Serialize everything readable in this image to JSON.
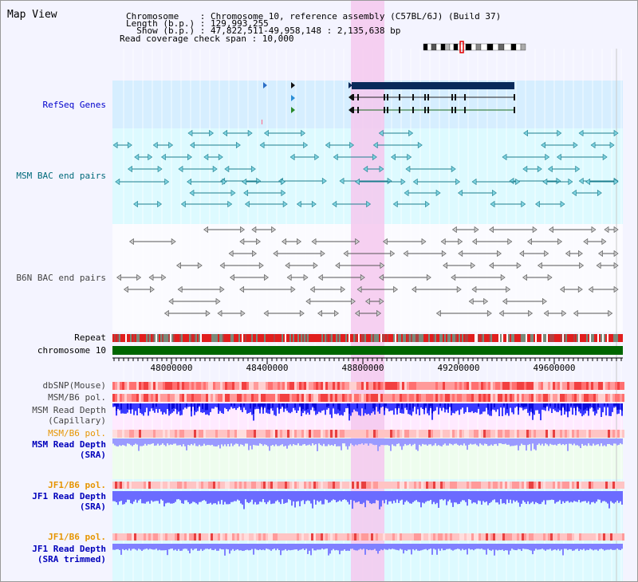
{
  "header": {
    "title": "Map View",
    "chromosome_line": "Chromosome    : Chromosome 10, reference assembly (C57BL/6J) (Build 37)",
    "length_line": "Length (b.p.) : 129,993,255",
    "show_line": "  Show (b.p.) : 47,822,511-49,958,148 : 2,135,638 bp",
    "coverage_line": "Read coverage check span : 10,000"
  },
  "tracks": {
    "refseq": "RefSeq Genes",
    "msm_bac": "MSM BAC end pairs",
    "b6n_bac": "B6N BAC end pairs",
    "repeat": "Repeat",
    "chromosome": "chromosome 10",
    "dbsnp": "dbSNP(Mouse)",
    "msm_b6_pol_1": "MSM/B6 pol.",
    "msm_depth_cap_1": "MSM Read Depth",
    "msm_depth_cap_2": "(Capillary)",
    "msm_b6_pol_2": "MSM/B6 pol.",
    "msm_depth_sra_1": "MSM Read Depth",
    "msm_depth_sra_2": "(SRA)",
    "jf1_b6_pol_1": "JF1/B6 pol.",
    "jf1_depth_sra_1": "JF1 Read Depth",
    "jf1_depth_sra_2": "(SRA)",
    "jf1_b6_pol_2": "JF1/B6 pol.",
    "jf1_depth_trim_1": "JF1 Read Depth",
    "jf1_depth_trim_2": "(SRA trimmed)"
  },
  "axis": {
    "ticks": [
      "48000000",
      "48400000",
      "48800000",
      "49200000",
      "49600000"
    ],
    "range_bp": [
      47822511,
      49958148
    ]
  },
  "colors": {
    "refseq_label": "#0000cc",
    "msm_label": "#006a7a",
    "b6n_label": "#444444",
    "pol_orange": "#e69500",
    "depth_blue": "#0000bb",
    "highlight": "#f5c8ee",
    "chromosome_green": "#006600",
    "gene_navy": "#0a2a5a"
  }
}
